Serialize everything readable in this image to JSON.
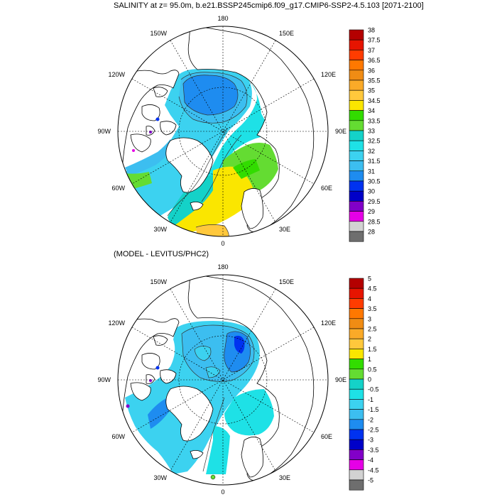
{
  "panel1": {
    "title": "SALINITY at z=  95.0m, b.e21.BSSP245cmip6.f09_g17.CMIP6-SSP2-4.5.103 [2071-2100]",
    "lon_labels": [
      "180",
      "150E",
      "120E",
      "90E",
      "60E",
      "30E",
      "0",
      "30W",
      "60W",
      "90W",
      "120W",
      "150W"
    ],
    "colorbar": {
      "labels": [
        "38",
        "37.5",
        "37",
        "36.5",
        "36",
        "35.5",
        "35",
        "34.5",
        "34",
        "33.5",
        "33",
        "32.5",
        "32",
        "31.5",
        "31",
        "30.5",
        "30",
        "29.5",
        "29",
        "28.5",
        "28"
      ],
      "colors": [
        "#b40000",
        "#e61400",
        "#ff3c00",
        "#ff7800",
        "#f08c14",
        "#faaa28",
        "#ffc83c",
        "#fae600",
        "#32dc00",
        "#64dc32",
        "#14d2c8",
        "#1ee1e6",
        "#3cd2f0",
        "#3cbef0",
        "#1e8cf0",
        "#0032f0",
        "#0000c8",
        "#8200c8",
        "#e600e6",
        "#d2d2d2"
      ],
      "bottom_color": "#6e6e6e"
    }
  },
  "panel2": {
    "title": "(MODEL - LEVITUS/PHC2)",
    "lon_labels": [
      "180",
      "150E",
      "120E",
      "90E",
      "60E",
      "30E",
      "0",
      "30W",
      "60W",
      "90W",
      "120W",
      "150W"
    ],
    "colorbar": {
      "labels": [
        "5",
        "4.5",
        "4",
        "3.5",
        "3",
        "2.5",
        "2",
        "1.5",
        "1",
        "0.5",
        "0",
        "-0.5",
        "-1",
        "-1.5",
        "-2",
        "-2.5",
        "-3",
        "-3.5",
        "-4",
        "-4.5",
        "-5"
      ],
      "colors": [
        "#b40000",
        "#e61400",
        "#ff3c00",
        "#ff7800",
        "#f08c14",
        "#faaa28",
        "#ffc83c",
        "#fae600",
        "#32dc00",
        "#64dc32",
        "#14d2c8",
        "#1ee1e6",
        "#3cd2f0",
        "#3cbef0",
        "#1e8cf0",
        "#0032f0",
        "#0000c8",
        "#8200c8",
        "#e600e6",
        "#d2d2d2"
      ],
      "bottom_color": "#6e6e6e"
    }
  }
}
